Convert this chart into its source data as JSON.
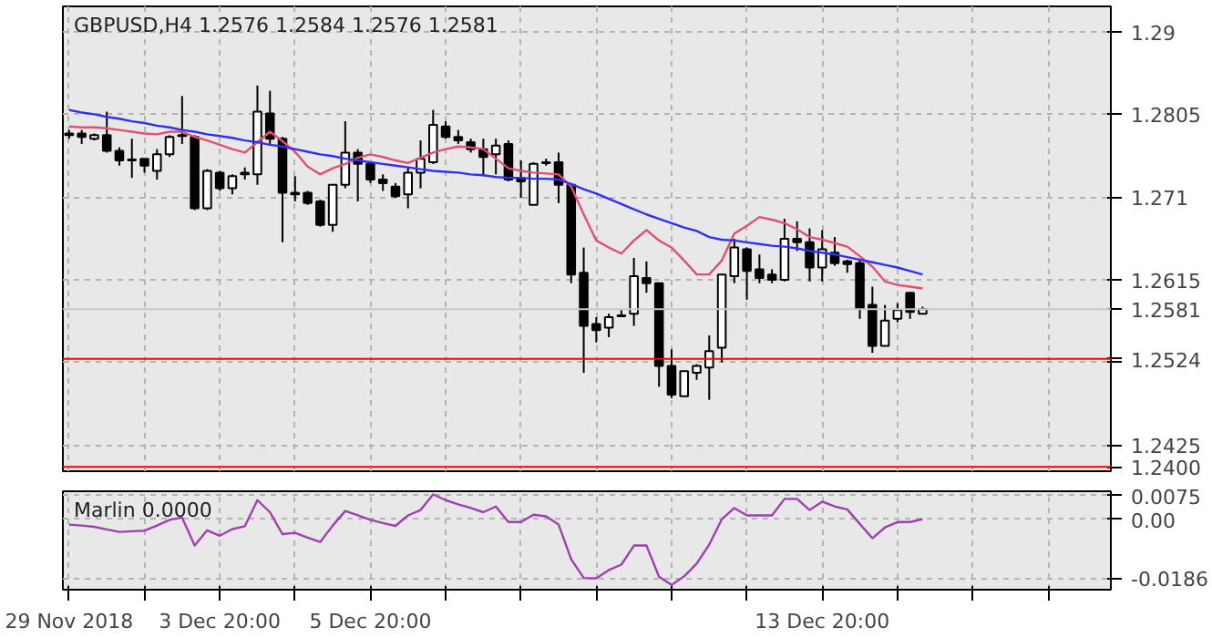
{
  "chart_data": [
    {
      "type": "candlestick",
      "title": "GBPUSD,H4 1.2576 1.2584 1.2576 1.2581",
      "categories": [
        null,
        null,
        null,
        null,
        null,
        null,
        null,
        null,
        null,
        null,
        null,
        null,
        null,
        null,
        null,
        null,
        null,
        null,
        null,
        null,
        null,
        null,
        null,
        null,
        null,
        null,
        null,
        null,
        null,
        null,
        null,
        null,
        null,
        null,
        null,
        null,
        null,
        null,
        null,
        null,
        null,
        null,
        null,
        null,
        null,
        null,
        null,
        null,
        null,
        null,
        null,
        null,
        null,
        null,
        null,
        null,
        null,
        null,
        null,
        null,
        null,
        null,
        null,
        null,
        null,
        null,
        null,
        null,
        null
      ],
      "ohlc": [
        [
          1.2783,
          1.2787,
          1.2777,
          1.2781
        ],
        [
          1.2783,
          1.2787,
          1.2771,
          1.2779
        ],
        [
          1.2777,
          1.2783,
          1.2775,
          1.2781
        ],
        [
          1.2781,
          1.2808,
          1.2761,
          1.2763
        ],
        [
          1.2763,
          1.2767,
          1.2746,
          1.2752
        ],
        [
          1.2753,
          1.2777,
          1.2732,
          1.2752
        ],
        [
          1.2754,
          1.2754,
          1.2738,
          1.2746
        ],
        [
          1.274,
          1.2765,
          1.273,
          1.2759
        ],
        [
          1.2759,
          1.2781,
          1.2756,
          1.2779
        ],
        [
          1.2781,
          1.2826,
          1.2771,
          1.278
        ],
        [
          1.2779,
          1.2781,
          1.2695,
          1.2697
        ],
        [
          1.2697,
          1.2742,
          1.2695,
          1.274
        ],
        [
          1.2738,
          1.274,
          1.2717,
          1.272
        ],
        [
          1.272,
          1.2736,
          1.2713,
          1.2734
        ],
        [
          1.2736,
          1.2744,
          1.273,
          1.2738
        ],
        [
          1.2736,
          1.2838,
          1.2724,
          1.2808
        ],
        [
          1.2806,
          1.2832,
          1.2771,
          1.2777
        ],
        [
          1.2777,
          1.2779,
          1.2658,
          1.2715
        ],
        [
          1.2715,
          1.2734,
          1.2705,
          1.2713
        ],
        [
          1.2715,
          1.2717,
          1.2701,
          1.2703
        ],
        [
          1.2705,
          1.2707,
          1.2676,
          1.2678
        ],
        [
          1.2678,
          1.2724,
          1.267,
          1.2724
        ],
        [
          1.2724,
          1.2797,
          1.272,
          1.2761
        ],
        [
          1.2761,
          1.2765,
          1.2705,
          1.2748
        ],
        [
          1.2748,
          1.275,
          1.2726,
          1.273
        ],
        [
          1.273,
          1.2736,
          1.2717,
          1.2726
        ],
        [
          1.2722,
          1.2726,
          1.2709,
          1.2711
        ],
        [
          1.2713,
          1.2744,
          1.2697,
          1.2738
        ],
        [
          1.2738,
          1.2775,
          1.272,
          1.2754
        ],
        [
          1.275,
          1.281,
          1.2748,
          1.2793
        ],
        [
          1.2791,
          1.2797,
          1.2777,
          1.2779
        ],
        [
          1.2779,
          1.2787,
          1.2771,
          1.2775
        ],
        [
          1.2773,
          1.2777,
          1.2761,
          1.2765
        ],
        [
          1.2765,
          1.2777,
          1.2734,
          1.2756
        ],
        [
          1.2759,
          1.2777,
          1.2736,
          1.2769
        ],
        [
          1.2771,
          1.2775,
          1.2728,
          1.273
        ],
        [
          1.2732,
          1.2752,
          1.2709,
          1.2728
        ],
        [
          1.2701,
          1.275,
          1.2701,
          1.2748
        ],
        [
          1.275,
          1.2754,
          1.2746,
          1.2749
        ],
        [
          1.275,
          1.2761,
          1.2703,
          1.2724
        ],
        [
          1.2724,
          1.2726,
          1.2611,
          1.2621
        ],
        [
          1.2623,
          1.2652,
          1.2508,
          1.2562
        ],
        [
          1.2564,
          1.2572,
          1.2543,
          1.2557
        ],
        [
          1.256,
          1.2576,
          1.2549,
          1.2572
        ],
        [
          1.2574,
          1.258,
          1.2572,
          1.2573
        ],
        [
          1.2576,
          1.264,
          1.2562,
          1.2619
        ],
        [
          1.2617,
          1.2636,
          1.26,
          1.2611
        ],
        [
          1.2611,
          1.2611,
          1.2492,
          1.2516
        ],
        [
          1.2516,
          1.2535,
          1.2479,
          1.2483
        ],
        [
          1.2481,
          1.251,
          1.2481,
          1.251
        ],
        [
          1.2508,
          1.2518,
          1.25,
          1.2516
        ],
        [
          1.2514,
          1.2551,
          1.2477,
          1.2533
        ],
        [
          1.2537,
          1.2621,
          1.252,
          1.2621
        ],
        [
          1.2619,
          1.2662,
          1.2611,
          1.2652
        ],
        [
          1.265,
          1.2652,
          1.2592,
          1.2625
        ],
        [
          1.2627,
          1.2644,
          1.2611,
          1.2617
        ],
        [
          1.2621,
          1.2627,
          1.2611,
          1.2615
        ],
        [
          1.2615,
          1.2685,
          1.2613,
          1.2662
        ],
        [
          1.2662,
          1.2682,
          1.2648,
          1.2658
        ],
        [
          1.2658,
          1.2674,
          1.2613,
          1.2629
        ],
        [
          1.2629,
          1.2672,
          1.2613,
          1.265
        ],
        [
          1.2646,
          1.2664,
          1.2631,
          1.2634
        ],
        [
          1.2636,
          1.2638,
          1.2623,
          1.2633
        ],
        [
          1.2634,
          1.2638,
          1.257,
          1.2582
        ],
        [
          1.2586,
          1.2607,
          1.2531,
          1.2539
        ],
        [
          1.2539,
          1.2586,
          1.2539,
          1.2568
        ],
        [
          1.257,
          1.2588,
          1.2566,
          1.258
        ],
        [
          1.26,
          1.26,
          1.257,
          1.2578
        ],
        [
          1.2576,
          1.2584,
          1.2576,
          1.2581
        ]
      ],
      "series": [
        {
          "type": "line",
          "color": "#e05070",
          "values": [
            1.2791,
            1.279,
            1.279,
            1.2789,
            1.2787,
            1.2785,
            1.2783,
            1.2782,
            1.2785,
            1.2785,
            1.2779,
            1.2775,
            1.277,
            1.2765,
            1.2761,
            1.2773,
            1.2785,
            1.2774,
            1.2762,
            1.2745,
            1.2736,
            1.2743,
            1.2748,
            1.2755,
            1.2759,
            1.2756,
            1.2752,
            1.2749,
            1.2755,
            1.2761,
            1.2765,
            1.2768,
            1.2767,
            1.2765,
            1.2754,
            1.2743,
            1.274,
            1.2738,
            1.2737,
            1.2736,
            1.2722,
            1.269,
            1.266,
            1.2652,
            1.2645,
            1.266,
            1.2672,
            1.266,
            1.2652,
            1.2637,
            1.2621,
            1.2621,
            1.2637,
            1.2668,
            1.2677,
            1.2687,
            1.2684,
            1.268,
            1.2673,
            1.2664,
            1.2661,
            1.2657,
            1.2653,
            1.2642,
            1.263,
            1.2613,
            1.2609,
            1.2607,
            1.2605
          ]
        },
        {
          "type": "line",
          "color": "#3030f0",
          "values": [
            1.281,
            1.2807,
            1.2805,
            1.2802,
            1.28,
            1.2797,
            1.2795,
            1.2792,
            1.279,
            1.2787,
            1.2785,
            1.2782,
            1.278,
            1.2778,
            1.2775,
            1.2773,
            1.277,
            1.2768,
            1.2765,
            1.2762,
            1.2759,
            1.2757,
            1.2754,
            1.2752,
            1.275,
            1.2748,
            1.2746,
            1.2744,
            1.2742,
            1.274,
            1.2739,
            1.2738,
            1.2736,
            1.2735,
            1.2733,
            1.2732,
            1.2732,
            1.2731,
            1.2731,
            1.273,
            1.2725,
            1.2719,
            1.2714,
            1.2708,
            1.2702,
            1.2696,
            1.269,
            1.2685,
            1.268,
            1.2675,
            1.2671,
            1.2664,
            1.2661,
            1.266,
            1.2658,
            1.2656,
            1.2654,
            1.2653,
            1.2651,
            1.2648,
            1.2646,
            1.2644,
            1.2641,
            1.2638,
            1.2635,
            1.2632,
            1.2629,
            1.2625,
            1.2621
          ]
        }
      ],
      "ylim": [
        1.2395,
        1.2929
      ],
      "yticks": [
        1.29,
        1.2805,
        1.271,
        1.2615,
        {
          "value": 1.252,
          "label": null
        },
        1.2425
      ],
      "ref_lines": [
        {
          "axis": "y",
          "value": 1.2581,
          "label": "1.2581",
          "color": "#c8c8c8"
        },
        {
          "axis": "y",
          "value": 1.2524,
          "label": "1.2524",
          "color": "#ff0000"
        },
        {
          "axis": "y",
          "value": 1.24,
          "label": "1.2400",
          "color": "#ff0000"
        }
      ],
      "grid": true,
      "tick_labels": "y"
    },
    {
      "type": "line",
      "title": "Marlin 0.0000",
      "categories": [
        "29 Nov 2018",
        null,
        null,
        null,
        null,
        null,
        null,
        null,
        null,
        null,
        null,
        null,
        "3 Dec 20:00",
        null,
        null,
        null,
        null,
        null,
        null,
        null,
        null,
        null,
        null,
        null,
        "5 Dec 20:00",
        null,
        null,
        null,
        null,
        null,
        null,
        null,
        null,
        null,
        null,
        null,
        null,
        null,
        null,
        null,
        null,
        null,
        null,
        null,
        null,
        null,
        null,
        null,
        null,
        null,
        null,
        null,
        null,
        null,
        null,
        null,
        null,
        null,
        null,
        null,
        "13 Dec 20:00",
        null,
        null,
        null,
        null,
        null,
        null,
        null,
        null
      ],
      "series": [
        {
          "color": "#a040b0",
          "values": [
            -0.0017,
            -0.002,
            -0.0024,
            -0.0032,
            -0.004,
            -0.0038,
            -0.0036,
            -0.002,
            -0.0002,
            0.0005,
            -0.0083,
            -0.0035,
            -0.0052,
            -0.0031,
            -0.0022,
            0.006,
            0.0022,
            -0.0047,
            -0.0043,
            -0.0058,
            -0.0072,
            -0.002,
            0.0026,
            0.0012,
            -0.0002,
            -0.0012,
            -0.0021,
            0.0012,
            0.0029,
            0.0078,
            0.006,
            0.0047,
            0.0035,
            0.0022,
            0.004,
            -0.0009,
            -0.0009,
            0.0014,
            0.0009,
            -0.0017,
            -0.0126,
            -0.0185,
            -0.0186,
            -0.016,
            -0.0143,
            -0.0083,
            -0.0083,
            -0.0181,
            -0.0207,
            -0.018,
            -0.014,
            -0.008,
            0.0,
            0.0035,
            0.0012,
            0.0012,
            0.0012,
            0.0064,
            0.0064,
            0.0029,
            0.0055,
            0.004,
            0.0031,
            -0.0015,
            -0.006,
            -0.0026,
            -0.0009,
            -0.0009,
            0.0
          ]
        }
      ],
      "ylim": [
        -0.0222,
        0.0088
      ],
      "yticks": [
        0.0075,
        {
          "value": 0,
          "label": "0.00"
        },
        -0.0186
      ],
      "grid": true
    }
  ]
}
